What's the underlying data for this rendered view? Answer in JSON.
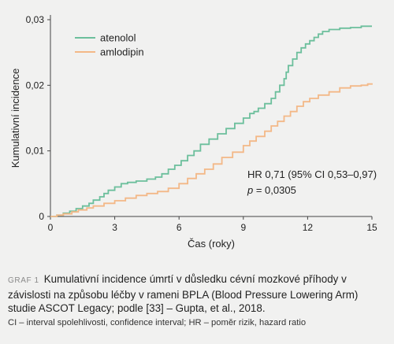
{
  "chart_data": {
    "type": "line",
    "line_style": "step",
    "xlabel": "Čas (roky)",
    "ylabel": "Kumulativní incidence",
    "xlim": [
      0,
      15
    ],
    "ylim": [
      0,
      0.03
    ],
    "x_ticks": [
      0,
      3,
      6,
      9,
      12,
      15
    ],
    "x_tick_labels": [
      "0",
      "3",
      "6",
      "9",
      "12",
      "15"
    ],
    "y_ticks": [
      0,
      0.01,
      0.02,
      0.03
    ],
    "y_tick_labels": [
      "0",
      "0,01",
      "0,02",
      "0,03"
    ],
    "grid": false,
    "legend_position": "top-left",
    "annotation": {
      "line1": "HR 0,71 (95% CI 0,53–0,97)",
      "line2_italic": "p",
      "line2_rest": " = 0,0305"
    },
    "series": [
      {
        "name": "atenolol",
        "color": "#6cbf9c",
        "x": [
          0,
          0.3,
          0.6,
          0.9,
          1.2,
          1.5,
          1.8,
          2.0,
          2.3,
          2.5,
          2.7,
          3.0,
          3.3,
          3.6,
          4.0,
          4.5,
          4.9,
          5.2,
          5.5,
          5.8,
          6.1,
          6.4,
          6.7,
          7.0,
          7.4,
          7.8,
          8.2,
          8.6,
          9.0,
          9.3,
          9.5,
          9.7,
          10.0,
          10.3,
          10.5,
          10.7,
          10.9,
          11.0,
          11.1,
          11.3,
          11.5,
          11.7,
          11.9,
          12.1,
          12.3,
          12.5,
          12.7,
          13.0,
          13.5,
          14.0,
          14.5,
          15.0
        ],
        "y": [
          0,
          0.0002,
          0.0005,
          0.0008,
          0.0012,
          0.0016,
          0.002,
          0.0025,
          0.003,
          0.0035,
          0.004,
          0.0045,
          0.005,
          0.0052,
          0.0054,
          0.0057,
          0.006,
          0.0065,
          0.0072,
          0.0078,
          0.0085,
          0.0093,
          0.01,
          0.011,
          0.0118,
          0.0126,
          0.0134,
          0.0142,
          0.015,
          0.0157,
          0.016,
          0.0165,
          0.0172,
          0.018,
          0.019,
          0.02,
          0.021,
          0.022,
          0.023,
          0.024,
          0.025,
          0.0257,
          0.0263,
          0.0268,
          0.0273,
          0.0278,
          0.0282,
          0.0285,
          0.0287,
          0.0288,
          0.029,
          0.029
        ]
      },
      {
        "name": "amlodipin",
        "color": "#f3b887",
        "x": [
          0,
          0.3,
          0.6,
          1.0,
          1.3,
          1.7,
          2.0,
          2.5,
          3.0,
          3.5,
          4.0,
          4.5,
          5.0,
          5.5,
          6.0,
          6.4,
          6.8,
          7.2,
          7.6,
          8.0,
          8.5,
          9.0,
          9.3,
          9.6,
          10.0,
          10.3,
          10.6,
          10.9,
          11.2,
          11.5,
          11.8,
          12.1,
          12.5,
          13.0,
          13.5,
          14.0,
          14.5,
          14.8,
          15.0
        ],
        "y": [
          0,
          0.0002,
          0.0004,
          0.0007,
          0.001,
          0.0013,
          0.0016,
          0.002,
          0.0024,
          0.0028,
          0.0032,
          0.0035,
          0.0038,
          0.0043,
          0.005,
          0.0058,
          0.0065,
          0.0072,
          0.008,
          0.009,
          0.0098,
          0.0108,
          0.0115,
          0.0122,
          0.013,
          0.0138,
          0.0145,
          0.0153,
          0.016,
          0.0168,
          0.0175,
          0.018,
          0.0185,
          0.019,
          0.0196,
          0.0199,
          0.02,
          0.0202,
          0.0203
        ]
      }
    ]
  },
  "caption": {
    "tag": "GRAF 1",
    "text": "Kumulativní incidence úmrtí v důsledku cévní mozkové příhody v závislosti na způsobu léčby v rameni BPLA (Blood Pressure Lowering Arm) studie ASCOT Legacy; podle [33] – Gupta, et al., 2018.",
    "footnote": "CI – interval spolehlivosti, confidence interval; HR – poměr rizik, hazard ratio"
  }
}
